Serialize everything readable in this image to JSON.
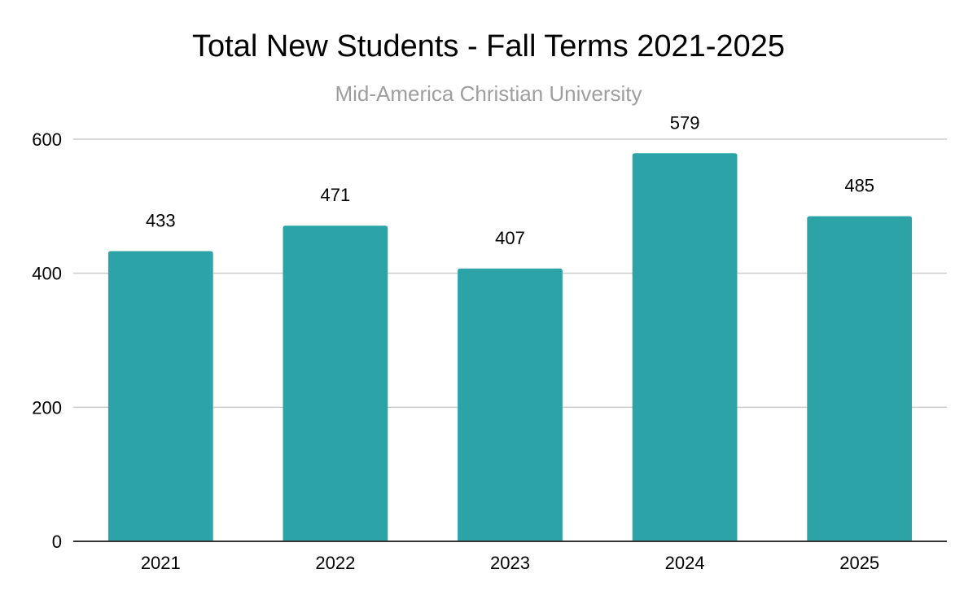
{
  "chart_data": {
    "type": "bar",
    "title": "Total New Students - Fall Terms 2021-2025",
    "subtitle": "Mid-America Christian University",
    "categories": [
      "2021",
      "2022",
      "2023",
      "2024",
      "2025"
    ],
    "values": [
      433,
      471,
      407,
      579,
      485
    ],
    "data_labels": [
      "433",
      "471",
      "407",
      "579",
      "485"
    ],
    "xlabel": "",
    "ylabel": "",
    "ylim": [
      0,
      600
    ],
    "yticks": [
      0,
      200,
      400,
      600
    ],
    "ytick_labels": [
      "0",
      "200",
      "400",
      "600"
    ],
    "grid": true,
    "legend": "none",
    "colors": {
      "bar": "#2ca3a7",
      "grid": "#cccccc",
      "axis": "#333333"
    }
  }
}
